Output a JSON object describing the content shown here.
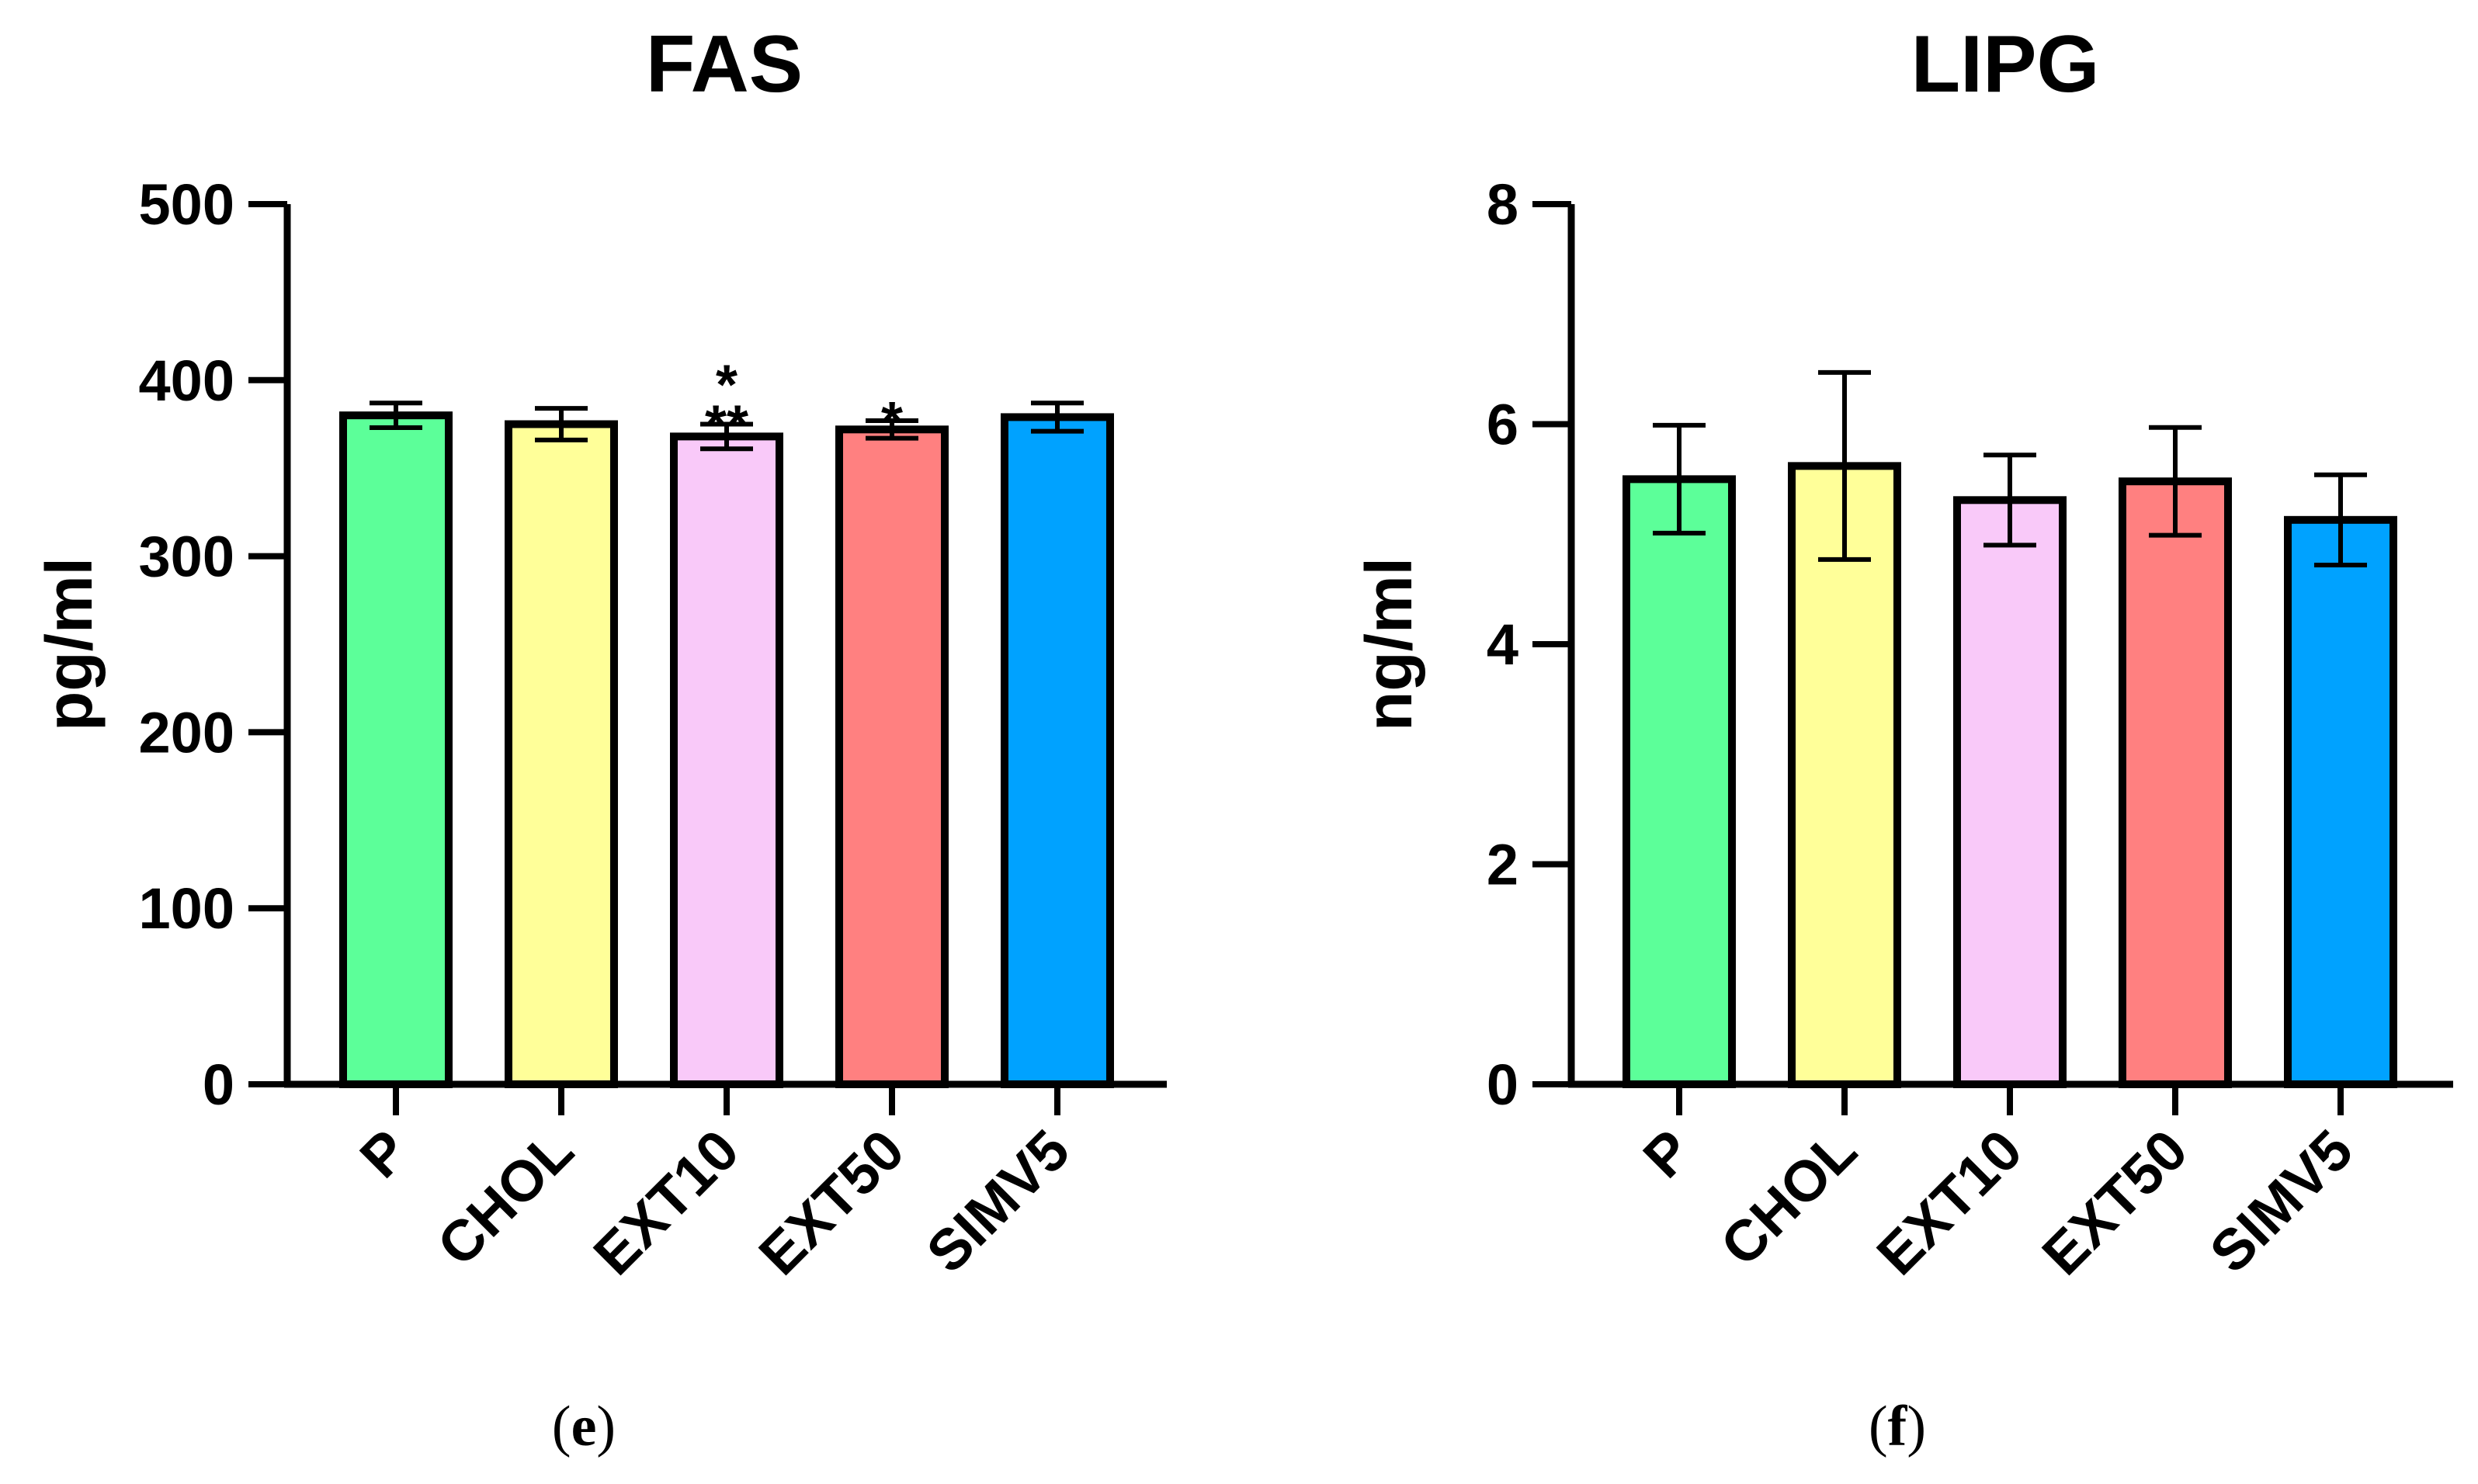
{
  "chart_data": [
    {
      "type": "bar",
      "title": "FAS",
      "ylabel": "pg/ml",
      "xlabel": "",
      "ylim": [
        0,
        500
      ],
      "yticks": [
        0,
        100,
        200,
        300,
        400,
        500
      ],
      "categories": [
        "P",
        "CHOL",
        "EXT10",
        "EXT50",
        "SIMV5"
      ],
      "values": [
        380,
        375,
        368,
        372,
        379
      ],
      "errors": [
        7,
        9,
        7,
        5,
        8
      ],
      "colors": [
        "#5cff99",
        "#ffff99",
        "#f9c9f9",
        "#ff8080",
        "#00a2ff"
      ],
      "significance": [
        "",
        "",
        "*\n**",
        "*",
        ""
      ],
      "grid": false,
      "caption_open": "(",
      "caption_letter": "e",
      "caption_close": ")"
    },
    {
      "type": "bar",
      "title": "LIPG",
      "ylabel": "ng/ml",
      "xlabel": "",
      "ylim": [
        0,
        8
      ],
      "yticks": [
        0,
        2,
        4,
        6,
        8
      ],
      "categories": [
        "P",
        "CHOL",
        "EXT10",
        "EXT50",
        "SIMV5"
      ],
      "values": [
        5.5,
        5.62,
        5.31,
        5.48,
        5.13
      ],
      "errors": [
        0.49,
        0.85,
        0.41,
        0.49,
        0.41
      ],
      "colors": [
        "#5cff99",
        "#ffff99",
        "#f9c9f9",
        "#ff8080",
        "#00a2ff"
      ],
      "significance": [
        "",
        "",
        "",
        "",
        ""
      ],
      "grid": false,
      "caption_open": "(",
      "caption_letter": "f",
      "caption_close": ")"
    }
  ]
}
